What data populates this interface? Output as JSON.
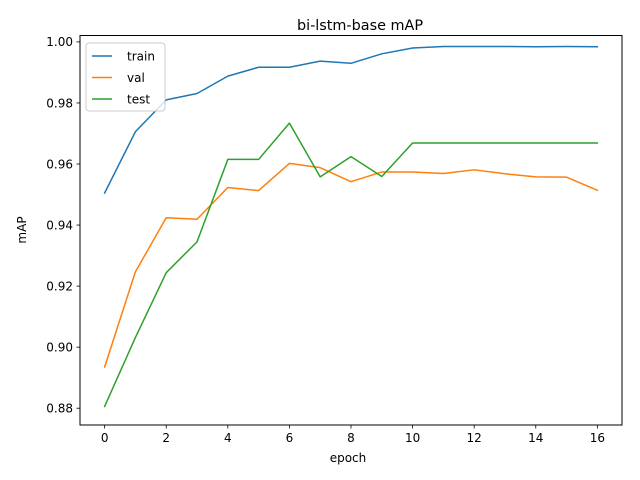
{
  "chart_data": {
    "type": "line",
    "title": "bi-lstm-base mAP",
    "xlabel": "epoch",
    "ylabel": "mAP",
    "xlim": [
      -0.8,
      16.8
    ],
    "ylim": [
      0.8745,
      1.0021
    ],
    "xticks": [
      0,
      2,
      4,
      6,
      8,
      10,
      12,
      14,
      16
    ],
    "yticks": [
      0.88,
      0.9,
      0.92,
      0.94,
      0.96,
      0.98,
      1.0
    ],
    "ytick_labels": [
      "0.88",
      "0.90",
      "0.92",
      "0.94",
      "0.96",
      "0.98",
      "1.00"
    ],
    "grid": false,
    "legend_position": "upper-left",
    "x": [
      0,
      1,
      2,
      3,
      4,
      5,
      6,
      7,
      8,
      9,
      10,
      11,
      12,
      13,
      14,
      15,
      16
    ],
    "series": [
      {
        "name": "train",
        "color": "#1f77b4",
        "values": [
          0.9505,
          0.9706,
          0.981,
          0.9831,
          0.9888,
          0.9917,
          0.9917,
          0.9937,
          0.993,
          0.9961,
          0.998,
          0.9985,
          0.9985,
          0.9985,
          0.9984,
          0.9985,
          0.9984
        ]
      },
      {
        "name": "val",
        "color": "#ff7f0e",
        "values": [
          0.8935,
          0.9247,
          0.9424,
          0.9419,
          0.9523,
          0.9513,
          0.9602,
          0.9588,
          0.9542,
          0.9574,
          0.9574,
          0.9569,
          0.9581,
          0.9568,
          0.9558,
          0.9557,
          0.9514
        ]
      },
      {
        "name": "test",
        "color": "#2ca02c",
        "values": [
          0.8806,
          0.9032,
          0.9244,
          0.9345,
          0.9615,
          0.9615,
          0.9734,
          0.9558,
          0.9624,
          0.9559,
          0.9669,
          0.9669,
          0.9669,
          0.9669,
          0.9669,
          0.9669,
          0.9669
        ]
      }
    ]
  }
}
